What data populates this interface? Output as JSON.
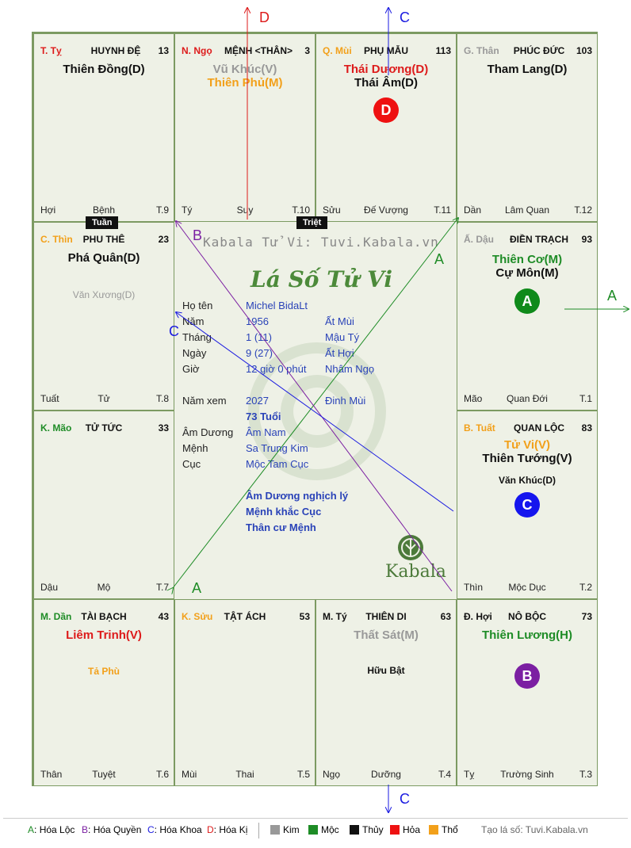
{
  "cells": {
    "ty": {
      "pos": "T. Tỵ",
      "name": "HUYNH ĐỆ",
      "num": "13",
      "main1": "Thiên Đồng(D)",
      "bl": "Hợi",
      "bc": "Bệnh",
      "br": "T.9"
    },
    "ngo": {
      "pos": "N. Ngọ",
      "name": "MỆNH <THÂN>",
      "num": "3",
      "main1": "Vũ Khúc(V)",
      "main2": "Thiên Phủ(M)",
      "bl": "Tý",
      "bc": "Suy",
      "br": "T.10"
    },
    "mui": {
      "pos": "Q. Mùi",
      "name": "PHỤ MẪU",
      "num": "113",
      "main1": "Thái Dương(D)",
      "main2": "Thái Âm(D)",
      "bl": "Sửu",
      "bc": "Đế Vượng",
      "br": "T.11",
      "circle": "D"
    },
    "than": {
      "pos": "G. Thân",
      "name": "PHÚC ĐỨC",
      "num": "103",
      "main1": "Tham Lang(D)",
      "bl": "Dần",
      "bc": "Lâm Quan",
      "br": "T.12"
    },
    "thin": {
      "pos": "C. Thìn",
      "name": "PHU THÊ",
      "num": "23",
      "main1": "Phá Quân(D)",
      "minor": "Văn Xương(D)",
      "bl": "Tuất",
      "bc": "Tử",
      "br": "T.8"
    },
    "dau": {
      "pos": "Ấ. Dậu",
      "name": "ĐIỀN TRẠCH",
      "num": "93",
      "main1": "Thiên Cơ(M)",
      "main2": "Cự Môn(M)",
      "bl": "Mão",
      "bc": "Quan Đới",
      "br": "T.1",
      "circle": "A"
    },
    "mao": {
      "pos": "K. Mão",
      "name": "TỬ TỨC",
      "num": "33",
      "bl": "Dậu",
      "bc": "Mộ",
      "br": "T.7"
    },
    "tuat": {
      "pos": "B. Tuất",
      "name": "QUAN LỘC",
      "num": "83",
      "main1": "Tử Vi(V)",
      "main2": "Thiên Tướng(V)",
      "minor": "Văn Khúc(D)",
      "bl": "Thìn",
      "bc": "Mộc Dục",
      "br": "T.2",
      "circle": "C"
    },
    "dan": {
      "pos": "M. Dần",
      "name": "TÀI BẠCH",
      "num": "43",
      "main1": "Liêm Trinh(V)",
      "minor": "Tả Phù",
      "bl": "Thân",
      "bc": "Tuyệt",
      "br": "T.6"
    },
    "suu": {
      "pos": "K. Sửu",
      "name": "TẬT ÁCH",
      "num": "53",
      "bl": "Mùi",
      "bc": "Thai",
      "br": "T.5"
    },
    "tyy": {
      "pos": "M. Tý",
      "name": "THIÊN DI",
      "num": "63",
      "main1": "Thất Sát(M)",
      "minor": "Hữu Bật",
      "bl": "Ngọ",
      "bc": "Dưỡng",
      "br": "T.4"
    },
    "hoi": {
      "pos": "Đ. Hợi",
      "name": "NÔ BỘC",
      "num": "73",
      "main1": "Thiên Lương(H)",
      "bl": "Tỵ",
      "bc": "Trường Sinh",
      "br": "T.3",
      "circle": "B"
    }
  },
  "badges": {
    "tuan": "Tuần",
    "triet": "Triệt"
  },
  "center": {
    "watermark": "Kabala Tử Vi: Tuvi.Kabala.vn",
    "heading": "Lá Số Tử Vi",
    "logo": "Kabala",
    "rows": [
      {
        "label": "Họ tên",
        "v1": "Michel BidaLt",
        "v2": ""
      },
      {
        "label": "Năm",
        "v1": "1956",
        "v2": "Ất Mùi"
      },
      {
        "label": "Tháng",
        "v1": "1  (11)",
        "v2": "Mậu Tý"
      },
      {
        "label": "Ngày",
        "v1": "9  (27)",
        "v2": "Ất Hợi"
      },
      {
        "label": "Giờ",
        "v1": "12 giờ 0 phút",
        "v2": "Nhâm Ngọ"
      },
      {
        "label": "Năm xem",
        "v1": "2027",
        "v2": "Đinh Mùi"
      },
      {
        "label": "",
        "v1": "73 Tuổi",
        "v2": ""
      },
      {
        "label": "Âm Dương",
        "v1": "Âm Nam",
        "v2": ""
      },
      {
        "label": "Mệnh",
        "v1": "Sa Trung Kim",
        "v2": ""
      },
      {
        "label": "Cục",
        "v1": "Mộc Tam Cục",
        "v2": ""
      }
    ],
    "notes": [
      "Âm Dương nghịch lý",
      "Mệnh khắc Cục",
      "Thân cư Mệnh"
    ]
  },
  "arrows": {
    "top_d": "D",
    "top_c": "C",
    "right_a": "A",
    "bottom_c": "C",
    "line_a1": "A",
    "line_a2": "A",
    "line_b": "B",
    "line_c": "C"
  },
  "legend": {
    "hoa": [
      {
        "key": "A",
        "text": "Hóa Lộc",
        "color": "#1e8c26"
      },
      {
        "key": "B",
        "text": "Hóa Quyền",
        "color": "#7b1fa2"
      },
      {
        "key": "C",
        "text": "Hóa Khoa",
        "color": "#1a1ae0"
      },
      {
        "key": "D",
        "text": "Hóa Kị",
        "color": "#dd1b1b"
      }
    ],
    "elements": [
      {
        "text": "Kim",
        "color": "#999999"
      },
      {
        "text": "Mộc",
        "color": "#1e8c26"
      },
      {
        "text": "Thủy",
        "color": "#111111"
      },
      {
        "text": "Hỏa",
        "color": "#ee1111"
      },
      {
        "text": "Thổ",
        "color": "#f2a01a"
      }
    ],
    "credit": "Tạo lá số: Tuvi.Kabala.vn"
  }
}
